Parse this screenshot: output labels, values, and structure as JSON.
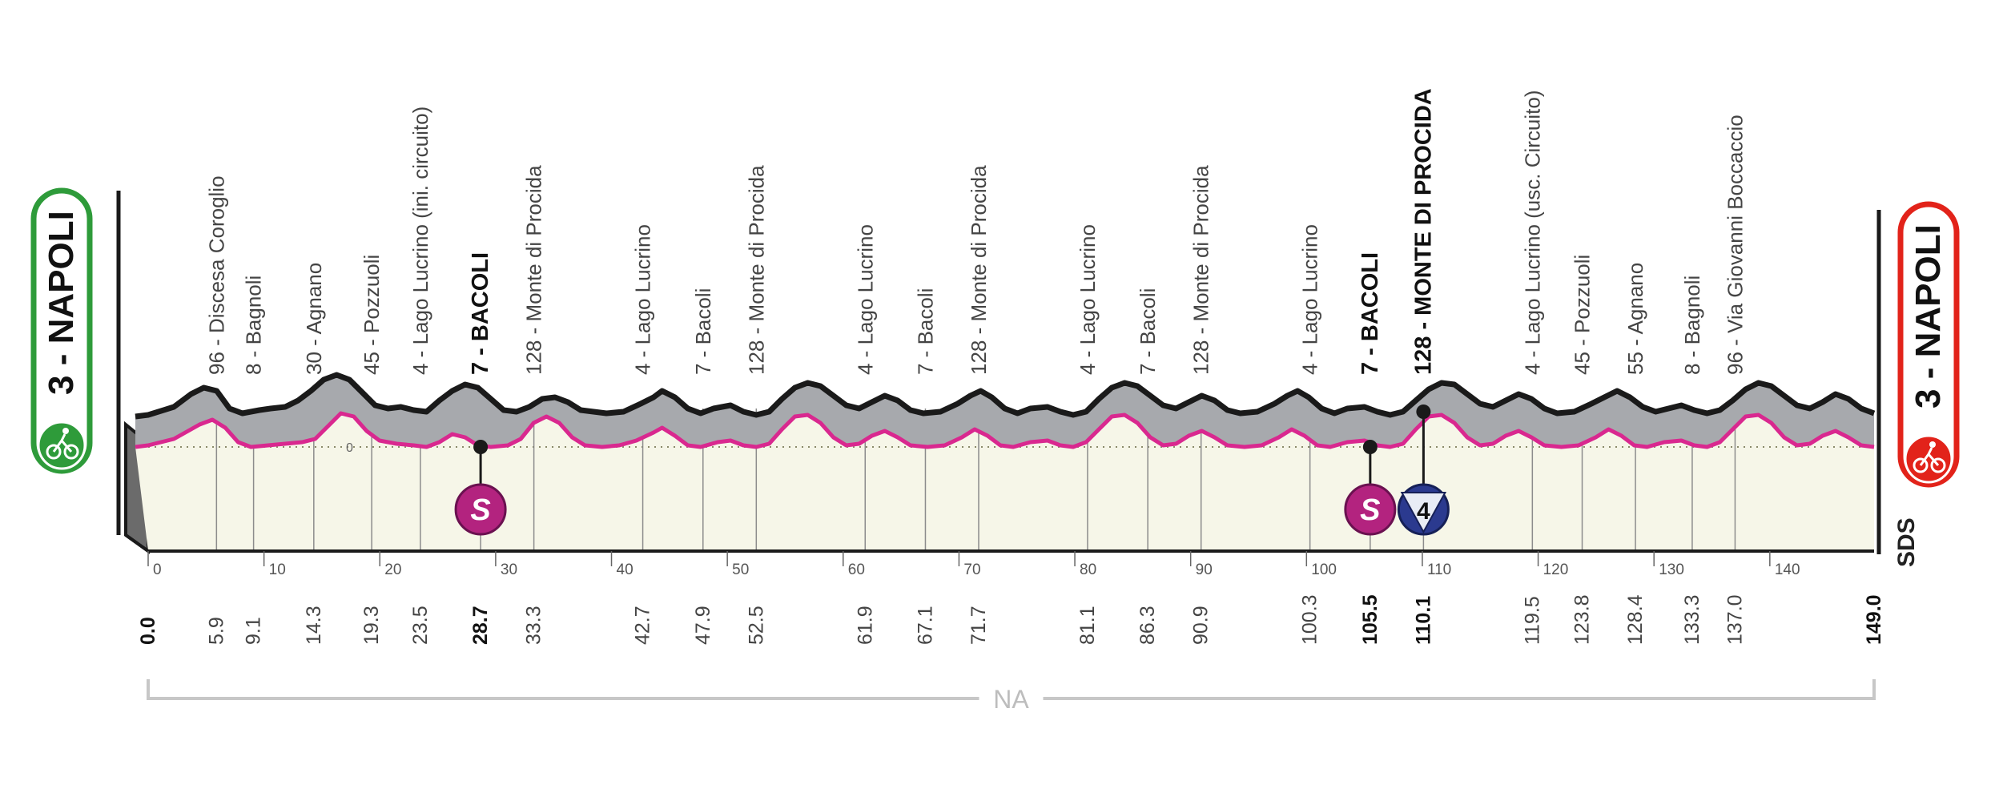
{
  "chart_data": {
    "type": "area",
    "title": "",
    "xlabel": "",
    "ylabel": "",
    "xlim": [
      0,
      149
    ],
    "x_ticks": [
      0,
      10,
      20,
      30,
      40,
      50,
      60,
      70,
      80,
      90,
      100,
      110,
      120,
      130,
      140
    ],
    "zero_label": "0",
    "start": {
      "label": "3 - NAPOLI",
      "color": "#2e9b3a"
    },
    "finish": {
      "label": "3 - NAPOLI",
      "color": "#e2231a"
    },
    "brand": "SDS",
    "region_label": "NA",
    "colors": {
      "terrain": "#a7a9ad",
      "route": "#d9288f",
      "base": "#f6f6e8",
      "outline": "#1a1a1a",
      "sprint": "#b3237f",
      "kom": "#2b3a8f"
    },
    "waypoints": [
      {
        "km": "0.0",
        "x": 0.0,
        "label": "",
        "bold": true
      },
      {
        "km": "5.9",
        "x": 5.9,
        "label": "96 - Discesa Coroglio",
        "bold": false
      },
      {
        "km": "9.1",
        "x": 9.1,
        "label": "8 - Bagnoli",
        "bold": false
      },
      {
        "km": "14.3",
        "x": 14.3,
        "label": "30 - Agnano",
        "bold": false
      },
      {
        "km": "19.3",
        "x": 19.3,
        "label": "45 - Pozzuoli",
        "bold": false
      },
      {
        "km": "23.5",
        "x": 23.5,
        "label": "4 - Lago Lucrino (ini. circuito)",
        "bold": false
      },
      {
        "km": "28.7",
        "x": 28.7,
        "label": "7 - BACOLI",
        "bold": true
      },
      {
        "km": "33.3",
        "x": 33.3,
        "label": "128 - Monte di Procida",
        "bold": false
      },
      {
        "km": "42.7",
        "x": 42.7,
        "label": "4 - Lago Lucrino",
        "bold": false
      },
      {
        "km": "47.9",
        "x": 47.9,
        "label": "7 - Bacoli",
        "bold": false
      },
      {
        "km": "52.5",
        "x": 52.5,
        "label": "128 - Monte di Procida",
        "bold": false
      },
      {
        "km": "61.9",
        "x": 61.9,
        "label": "4 - Lago Lucrino",
        "bold": false
      },
      {
        "km": "67.1",
        "x": 67.1,
        "label": "7 - Bacoli",
        "bold": false
      },
      {
        "km": "71.7",
        "x": 71.7,
        "label": "128 - Monte di Procida",
        "bold": false
      },
      {
        "km": "81.1",
        "x": 81.1,
        "label": "4 - Lago Lucrino",
        "bold": false
      },
      {
        "km": "86.3",
        "x": 86.3,
        "label": "7 - Bacoli",
        "bold": false
      },
      {
        "km": "90.9",
        "x": 90.9,
        "label": "128 - Monte di Procida",
        "bold": false
      },
      {
        "km": "100.3",
        "x": 100.3,
        "label": "4 - Lago Lucrino",
        "bold": false
      },
      {
        "km": "105.5",
        "x": 105.5,
        "label": "7 - BACOLI",
        "bold": true
      },
      {
        "km": "110.1",
        "x": 110.1,
        "label": "128 - MONTE DI PROCIDA",
        "bold": true
      },
      {
        "km": "119.5",
        "x": 119.5,
        "label": "4 - Lago Lucrino (usc. Circuito)",
        "bold": false
      },
      {
        "km": "123.8",
        "x": 123.8,
        "label": "45 - Pozzuoli",
        "bold": false
      },
      {
        "km": "128.4",
        "x": 128.4,
        "label": "55 - Agnano",
        "bold": false
      },
      {
        "km": "133.3",
        "x": 133.3,
        "label": "8 - Bagnoli",
        "bold": false
      },
      {
        "km": "137.0",
        "x": 137.0,
        "label": "96 - Via Giovanni Boccaccio",
        "bold": false
      },
      {
        "km": "149.0",
        "x": 149.0,
        "label": "",
        "bold": true
      }
    ],
    "markers": [
      {
        "type": "sprint",
        "km": 28.7,
        "symbol": "S"
      },
      {
        "type": "sprint",
        "km": 105.5,
        "symbol": "S"
      },
      {
        "type": "kom",
        "km": 110.1,
        "symbol": "4"
      }
    ]
  }
}
